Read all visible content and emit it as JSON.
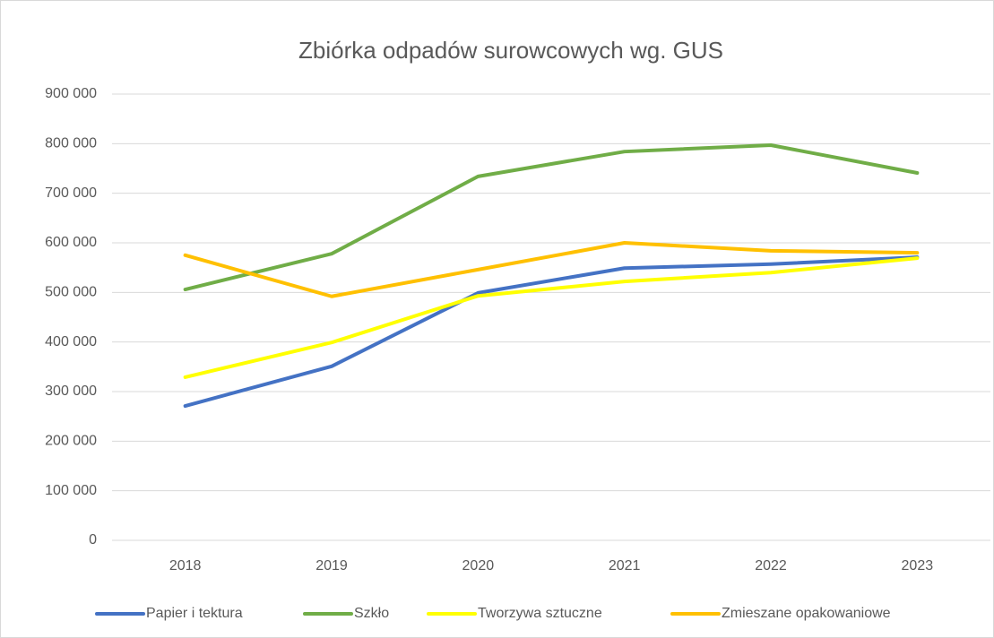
{
  "chart_data": {
    "type": "line",
    "title": "Zbiórka odpadów surowcowych wg. GUS",
    "categories": [
      "2018",
      "2019",
      "2020",
      "2021",
      "2022",
      "2023"
    ],
    "series": [
      {
        "name": "Papier i tektura",
        "color": "#4472c4",
        "values": [
          271000,
          351000,
          499000,
          549000,
          557000,
          571000
        ]
      },
      {
        "name": "Szkło",
        "color": "#70ad47",
        "values": [
          506000,
          578000,
          734000,
          784000,
          797000,
          741000
        ]
      },
      {
        "name": "Tworzywa sztuczne",
        "color": "#ffff00",
        "values": [
          329000,
          399000,
          493000,
          522000,
          540000,
          569000
        ]
      },
      {
        "name": "Zmieszane opakowaniowe",
        "color": "#ffc000",
        "values": [
          575000,
          492000,
          546000,
          600000,
          584000,
          580000
        ]
      }
    ],
    "ylim": [
      0,
      900000
    ],
    "yticks": [
      0,
      {
        "value": 100000,
        "label": "100 000"
      },
      {
        "value": 200000,
        "label": "200 000"
      },
      {
        "value": 300000,
        "label": "300 000"
      },
      {
        "value": 400000,
        "label": "400 000"
      },
      {
        "value": 500000,
        "label": "500 000"
      },
      {
        "value": 600000,
        "label": "600 000"
      },
      {
        "value": 700000,
        "label": "700 000"
      },
      {
        "value": 800000,
        "label": "800 000"
      },
      {
        "value": 900000,
        "label": "900 000"
      }
    ],
    "grid": true,
    "legend": "bottom"
  }
}
